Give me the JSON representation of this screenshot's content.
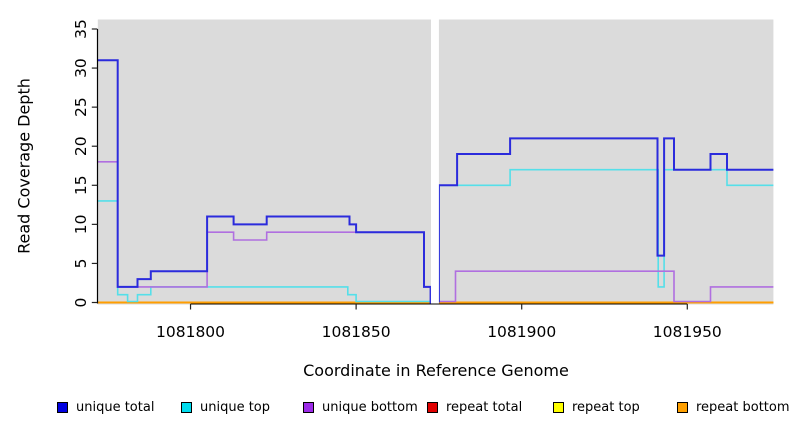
{
  "page": {
    "background": "#FFFFFF"
  },
  "chart_data": {
    "type": "line",
    "step": true,
    "title": "",
    "xlabel": "Coordinate in Reference Genome",
    "ylabel": "Read Coverage Depth",
    "xlim": [
      1081772,
      1081976
    ],
    "ylim": [
      0,
      35
    ],
    "x_ticks": [
      1081800,
      1081850,
      1081900,
      1081950
    ],
    "y_ticks": [
      0,
      5,
      10,
      15,
      20,
      25,
      30,
      35
    ],
    "grid": false,
    "legend_position": "bottom",
    "plot_background": "#DBDBDB",
    "no_data_region": [
      1081872.6,
      1081875
    ],
    "draw_order": [
      "repeat total",
      "repeat top",
      "repeat bottom",
      "unique top",
      "unique bottom",
      "unique total"
    ],
    "series": [
      {
        "name": "unique total",
        "color": "#2B2BDC",
        "legend_color": "#0000E0",
        "line_width": 2,
        "zero_offset": false,
        "segments": [
          [
            [
              1081772,
              31
            ],
            [
              1081778,
              2
            ],
            [
              1081784,
              3
            ],
            [
              1081788,
              4
            ],
            [
              1081805,
              11
            ],
            [
              1081813,
              10
            ],
            [
              1081823,
              11
            ],
            [
              1081848,
              10
            ],
            [
              1081850,
              9
            ],
            [
              1081870.5,
              2
            ],
            [
              1081872.5,
              0
            ],
            [
              1081872.6,
              0
            ]
          ],
          [
            [
              1081875,
              0
            ],
            [
              1081875,
              15
            ],
            [
              1081880.5,
              19
            ],
            [
              1081896.5,
              21
            ],
            [
              1081941,
              6
            ],
            [
              1081943,
              21
            ],
            [
              1081946,
              17
            ],
            [
              1081957,
              19
            ],
            [
              1081962,
              17
            ],
            [
              1081976,
              17
            ]
          ]
        ]
      },
      {
        "name": "unique top",
        "color": "#55DFE9",
        "legend_color": "#00DCEE",
        "line_width": 1.6,
        "zero_offset": true,
        "segments": [
          [
            [
              1081772,
              13
            ],
            [
              1081778,
              1
            ],
            [
              1081781,
              0
            ],
            [
              1081784,
              1
            ],
            [
              1081788,
              2
            ],
            [
              1081847.5,
              1
            ],
            [
              1081850,
              0
            ],
            [
              1081872.6,
              0
            ]
          ],
          [
            [
              1081875,
              0
            ],
            [
              1081875,
              15
            ],
            [
              1081896.5,
              17
            ],
            [
              1081941.2,
              2
            ],
            [
              1081943,
              17
            ],
            [
              1081962,
              15
            ],
            [
              1081976,
              15
            ]
          ]
        ]
      },
      {
        "name": "unique bottom",
        "color": "#B06FE0",
        "legend_color": "#9C2BE8",
        "line_width": 1.6,
        "zero_offset": true,
        "segments": [
          [
            [
              1081772,
              18
            ],
            [
              1081778,
              2
            ],
            [
              1081805,
              9
            ],
            [
              1081813,
              8
            ],
            [
              1081823,
              9
            ],
            [
              1081870.5,
              2
            ],
            [
              1081872.5,
              0
            ],
            [
              1081872.6,
              0
            ]
          ],
          [
            [
              1081875,
              0
            ],
            [
              1081880,
              4
            ],
            [
              1081946,
              0
            ],
            [
              1081957,
              2
            ],
            [
              1081976,
              2
            ]
          ]
        ]
      },
      {
        "name": "repeat total",
        "color": "#E00000",
        "legend_color": "#E00000",
        "line_width": 1.5,
        "zero_offset": false,
        "segments": [
          [
            [
              1081772,
              0
            ],
            [
              1081872.6,
              0
            ]
          ],
          [
            [
              1081875,
              0
            ],
            [
              1081976,
              0
            ]
          ]
        ]
      },
      {
        "name": "repeat top",
        "color": "#FFFF00",
        "legend_color": "#FFFF00",
        "line_width": 1.5,
        "zero_offset": false,
        "segments": [
          [
            [
              1081772,
              0
            ],
            [
              1081872.6,
              0
            ]
          ],
          [
            [
              1081875,
              0
            ],
            [
              1081976,
              0
            ]
          ]
        ]
      },
      {
        "name": "repeat bottom",
        "color": "#FF9E00",
        "legend_color": "#FFA000",
        "line_width": 2,
        "zero_offset": false,
        "segments": [
          [
            [
              1081772,
              0
            ],
            [
              1081872.6,
              0
            ]
          ],
          [
            [
              1081875,
              0
            ],
            [
              1081976,
              0
            ]
          ]
        ]
      }
    ]
  }
}
